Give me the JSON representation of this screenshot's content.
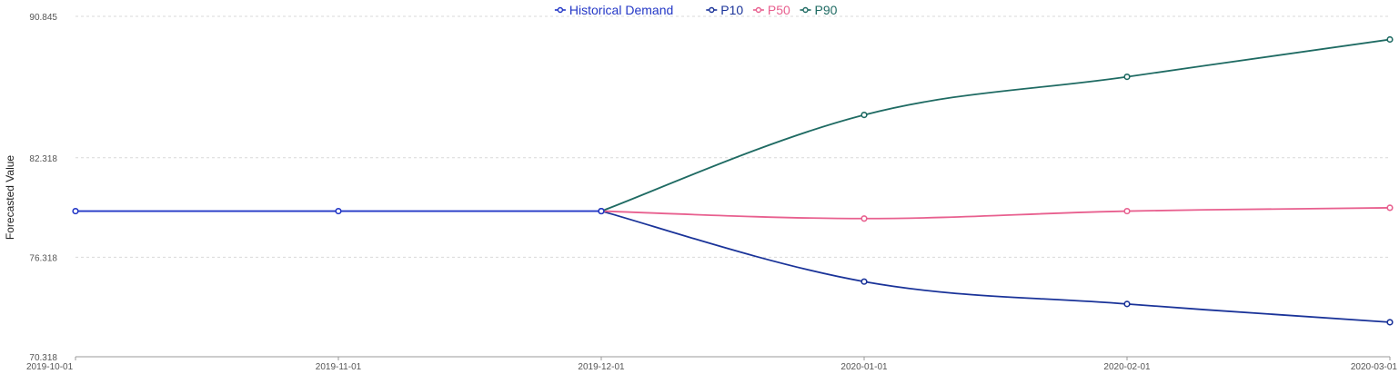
{
  "chart_data": {
    "type": "line",
    "ylabel": "Forecasted Value",
    "xlabel": "",
    "ylim": [
      70.318,
      90.845
    ],
    "y_ticks": [
      "70.318",
      "76.318",
      "82.318",
      "90.845"
    ],
    "y_tick_values": [
      70.318,
      76.318,
      82.318,
      90.845
    ],
    "x_ticks": [
      "2019-10-01",
      "2019-11-01",
      "2019-12-01",
      "2020-01-01",
      "2020-02-01",
      "2020-03-01"
    ],
    "grid": "horizontal dotted",
    "legend_position": "top-center",
    "series": [
      {
        "name": "Historical Demand",
        "color": "#2337c6",
        "x": [
          "2019-10-01",
          "2019-11-01",
          "2019-12-01"
        ],
        "values": [
          79.1,
          79.1,
          79.1
        ]
      },
      {
        "name": "P10",
        "color": "#1a3399",
        "x": [
          "2019-12-01",
          "2020-01-01",
          "2020-02-01",
          "2020-03-01"
        ],
        "values": [
          79.1,
          74.85,
          73.5,
          72.4
        ]
      },
      {
        "name": "P50",
        "color": "#e8608f",
        "x": [
          "2019-12-01",
          "2020-01-01",
          "2020-02-01",
          "2020-03-01"
        ],
        "values": [
          79.1,
          78.65,
          79.1,
          79.3
        ]
      },
      {
        "name": "P90",
        "color": "#1f6b63",
        "x": [
          "2019-12-01",
          "2020-01-01",
          "2020-02-01",
          "2020-03-01"
        ],
        "values": [
          79.1,
          84.9,
          87.2,
          89.45
        ]
      }
    ]
  }
}
